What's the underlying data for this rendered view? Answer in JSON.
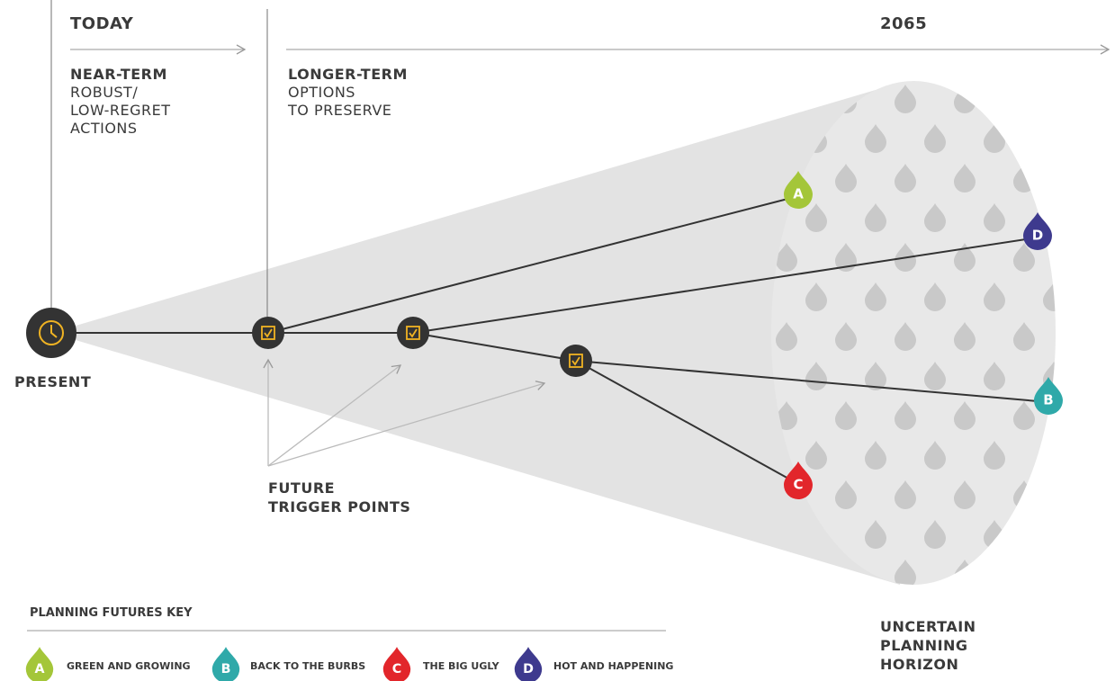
{
  "header": {
    "today": "TODAY",
    "year": "2065"
  },
  "near_term": {
    "title": "NEAR-TERM",
    "lines": [
      "ROBUST/",
      "LOW-REGRET",
      "ACTIONS"
    ]
  },
  "longer_term": {
    "title": "LONGER-TERM",
    "lines": [
      "OPTIONS",
      "TO PRESERVE"
    ]
  },
  "present": "PRESENT",
  "trigger_points": [
    "FUTURE",
    "TRIGGER POINTS"
  ],
  "horizon": [
    "UNCERTAIN",
    "PLANNING",
    "HORIZON"
  ],
  "key_title": "PLANNING FUTURES KEY",
  "futures": [
    {
      "letter": "A",
      "name": "GREEN AND GROWING",
      "color": "#a4c639"
    },
    {
      "letter": "B",
      "name": "BACK TO THE BURBS",
      "color": "#2fa9a9"
    },
    {
      "letter": "C",
      "name": "THE BIG UGLY",
      "color": "#e2262b"
    },
    {
      "letter": "D",
      "name": "HOT AND HAPPENING",
      "color": "#3e3a8e"
    }
  ]
}
